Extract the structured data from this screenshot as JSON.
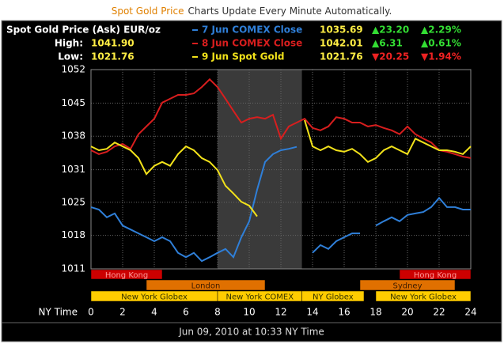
{
  "banner": {
    "title": "Spot Gold Price",
    "subtitle": "Charts Update Every Minute Automatically."
  },
  "chart_data": {
    "type": "line",
    "title": "Spot Gold Price (Ask) EUR/oz",
    "high_label": "High:",
    "high": "1041.90",
    "low_label": "Low:",
    "low": "1021.76",
    "x_label": "NY Time",
    "footer": "Jun 09, 2010 at 10:33 NY Time",
    "xlim": [
      0,
      24
    ],
    "xticks": [
      0,
      2,
      4,
      6,
      8,
      10,
      12,
      14,
      16,
      18,
      20,
      22,
      24
    ],
    "ylim": [
      1011,
      1052
    ],
    "yticks": [
      1011,
      {
        "value": 1017.9,
        "label": "1018"
      },
      {
        "value": 1024.7,
        "label": "1025"
      },
      {
        "value": 1031.4,
        "label": "1031"
      },
      {
        "value": 1038.3,
        "label": "1038"
      },
      {
        "value": 1045.1,
        "label": "1045"
      },
      1052
    ],
    "grid": true,
    "shade": {
      "range": [
        8,
        13.33
      ],
      "color": "#3a3a3a"
    },
    "x": [
      0,
      0.5,
      1,
      1.5,
      2,
      2.5,
      3,
      3.5,
      4,
      4.5,
      5,
      5.5,
      6,
      6.5,
      7,
      7.5,
      8,
      8.5,
      9,
      9.5,
      10,
      10.5,
      11,
      11.5,
      12,
      12.5,
      13,
      13.5,
      14,
      14.5,
      15,
      15.5,
      16,
      16.5,
      17,
      17.5,
      18,
      18.5,
      19,
      19.5,
      20,
      20.5,
      21,
      21.5,
      22,
      22.5,
      23,
      23.5,
      24
    ],
    "series": [
      {
        "name": "7 Jun COMEX Close",
        "color": "#2f7fd8",
        "close": "1035.69",
        "change": "▲23.20",
        "change_pct": "▲2.29%",
        "change_color": "#33dd33",
        "values": [
          1023.7,
          1023.2,
          1021.6,
          1022.4,
          1019.9,
          1019.1,
          1018.3,
          1017.5,
          1016.7,
          1017.5,
          1016.7,
          1014.3,
          1013.4,
          1014.3,
          1012.6,
          1013.4,
          1014.3,
          1015.1,
          1013.4,
          1017.5,
          1020.8,
          1027.3,
          1033.0,
          1034.6,
          1035.4,
          1035.7,
          1036.1,
          null,
          1014.3,
          1015.9,
          1015.1,
          1016.7,
          1017.5,
          1018.3,
          1018.3,
          null,
          1019.9,
          1020.8,
          1021.6,
          1020.8,
          1022.1,
          1022.4,
          1022.7,
          1023.7,
          1025.6,
          1023.7,
          1023.7,
          1023.2,
          1023.2
        ]
      },
      {
        "name": "8 Jun COMEX Close",
        "color": "#d81e1e",
        "close": "1042.01",
        "change": "▲6.31",
        "change_pct": "▲0.61%",
        "change_color": "#33dd33",
        "values": [
          1035.4,
          1034.6,
          1035.1,
          1036.2,
          1036.7,
          1035.7,
          1038.7,
          1040.3,
          1041.9,
          1045.2,
          1046.0,
          1046.8,
          1046.8,
          1047.1,
          1048.4,
          1050.0,
          1048.4,
          1046.0,
          1043.5,
          1041.1,
          1041.9,
          1042.2,
          1041.9,
          1042.7,
          1037.8,
          1040.3,
          1041.1,
          1041.9,
          1040.0,
          1039.5,
          1040.3,
          1042.2,
          1041.9,
          1041.1,
          1041.1,
          1040.3,
          1040.6,
          1040.0,
          1039.5,
          1038.7,
          1040.3,
          1038.7,
          1037.8,
          1037.0,
          1035.4,
          1035.1,
          1034.6,
          1034.1,
          1033.8
        ]
      },
      {
        "name": "9 Jun Spot Gold",
        "color": "#f2e21a",
        "close": "1021.76",
        "change": "▼20.25",
        "change_pct": "▼1.94%",
        "change_color": "#ee2222",
        "values": [
          1036.2,
          1035.4,
          1035.7,
          1037.0,
          1036.2,
          1035.4,
          1033.8,
          1030.5,
          1032.2,
          1033.0,
          1032.2,
          1034.6,
          1036.2,
          1035.4,
          1033.8,
          1033.0,
          1031.3,
          1028.1,
          1026.5,
          1024.8,
          1024.0,
          1021.8,
          null,
          null,
          null,
          null,
          null,
          1041.6,
          1036.2,
          1035.4,
          1036.2,
          1035.4,
          1035.1,
          1035.7,
          1034.6,
          1033.0,
          1033.8,
          1035.4,
          1036.2,
          1035.4,
          1034.6,
          1037.8,
          1037.0,
          1036.2,
          1035.4,
          1035.4,
          1035.1,
          1034.6,
          1036.2
        ]
      }
    ],
    "sessions": [
      {
        "color": "#cc0000",
        "text_color": "#ff9999",
        "bars": [
          {
            "name": "Hong Kong",
            "start": 0,
            "end": 4.5
          },
          {
            "name": "Hong Kong",
            "start": 19.5,
            "end": 24
          }
        ]
      },
      {
        "color": "#e07000",
        "text_color": "#3a1a00",
        "bars": [
          {
            "name": "London",
            "start": 3.5,
            "end": 11
          },
          {
            "name": "Sydney",
            "start": 17,
            "end": 23
          }
        ]
      },
      {
        "color": "#ffcc00",
        "text_color": "#333300",
        "bars": [
          {
            "name": "New York Globex",
            "start": 0,
            "end": 8
          },
          {
            "name": "New York COMEX",
            "start": 8,
            "end": 13.33
          },
          {
            "name": "NY Globex",
            "start": 13.33,
            "end": 17.25
          },
          {
            "name": "New York Globex",
            "start": 18,
            "end": 24
          }
        ]
      }
    ]
  }
}
